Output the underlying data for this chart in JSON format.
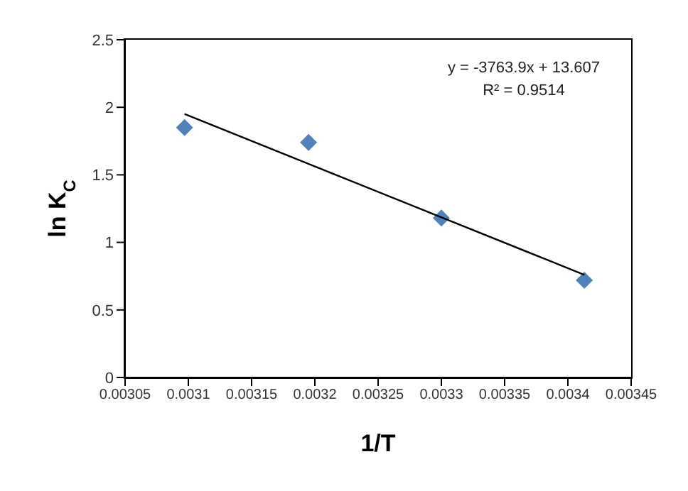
{
  "chart_data": {
    "type": "scatter",
    "xlabel": "1/T",
    "ylabel": "ln K$_{C}$",
    "series": [
      {
        "color": "#4f81bd",
        "x": [
          0.003097,
          0.003195,
          0.0033,
          0.003413
        ],
        "values": [
          1.85,
          1.74,
          1.18,
          0.72
        ],
        "marker": "diamond"
      },
      {
        "type": "line",
        "color": "#000000",
        "x": [
          0.003097,
          0.003413
        ],
        "values": [
          1.95,
          0.76
        ],
        "marker": "none",
        "line_style": "solid"
      }
    ],
    "annotations": [
      "y = -3763.9x + 13.607",
      "R² = 0.9514"
    ],
    "xlim": [
      0.00305,
      0.00345
    ],
    "xticks": [
      0.00305,
      0.0031,
      0.00315,
      0.0032,
      0.00325,
      0.0033,
      0.00335,
      0.0034,
      0.00345
    ],
    "ylim": [
      0,
      2.5
    ],
    "yticks": [
      0,
      0.5,
      1,
      1.5,
      2,
      2.5
    ],
    "grid": false
  }
}
